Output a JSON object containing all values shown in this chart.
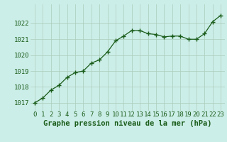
{
  "x": [
    0,
    1,
    2,
    3,
    4,
    5,
    6,
    7,
    8,
    9,
    10,
    11,
    12,
    13,
    14,
    15,
    16,
    17,
    18,
    19,
    20,
    21,
    22,
    23
  ],
  "y": [
    1017.0,
    1017.3,
    1017.8,
    1018.1,
    1018.6,
    1018.9,
    1019.0,
    1019.5,
    1019.7,
    1020.2,
    1020.9,
    1021.2,
    1021.55,
    1021.55,
    1021.35,
    1021.3,
    1021.15,
    1021.2,
    1021.2,
    1021.0,
    1021.0,
    1021.35,
    1022.1,
    1022.5
  ],
  "line_color": "#1a5c1a",
  "marker": "+",
  "marker_size": 4,
  "marker_color": "#1a5c1a",
  "bg_color": "#cceee8",
  "grid_color": "#aaccbb",
  "xlabel": "Graphe pression niveau de la mer (hPa)",
  "xlabel_color": "#1a5c1a",
  "xlabel_fontsize": 7.5,
  "tick_color": "#1a5c1a",
  "tick_fontsize": 6.5,
  "ytick_values": [
    1017,
    1018,
    1019,
    1020,
    1021,
    1022
  ],
  "ytick_labels": [
    "1017",
    "1018",
    "1019",
    "1020",
    "1021",
    "1022"
  ],
  "ylim": [
    1016.5,
    1023.2
  ],
  "xlim": [
    -0.5,
    23.5
  ],
  "xtick_labels": [
    "0",
    "1",
    "2",
    "3",
    "4",
    "5",
    "6",
    "7",
    "8",
    "9",
    "10",
    "11",
    "12",
    "13",
    "14",
    "15",
    "16",
    "17",
    "18",
    "19",
    "20",
    "21",
    "22",
    "23"
  ]
}
